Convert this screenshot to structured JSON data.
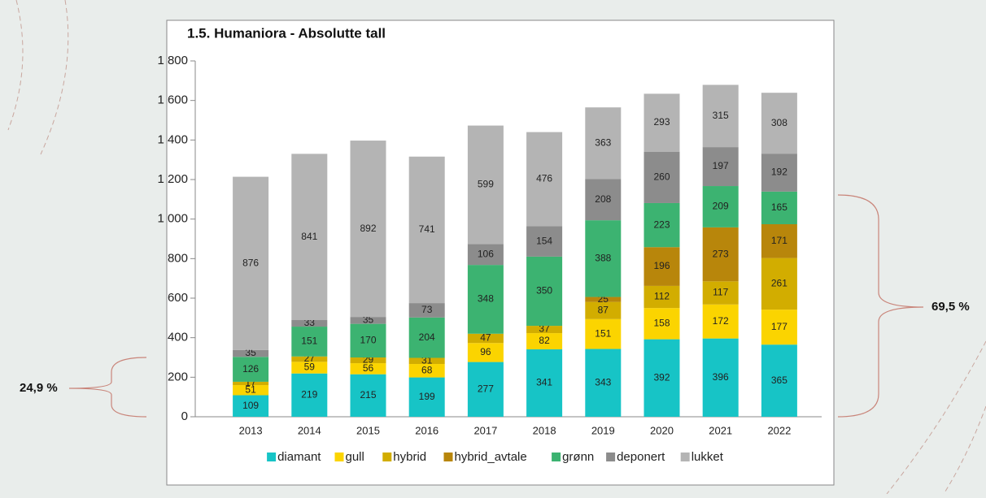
{
  "chart_data": {
    "type": "stacked_bar",
    "title": "1.5. Humaniora - Absolutte tall",
    "categories": [
      "2013",
      "2014",
      "2015",
      "2016",
      "2017",
      "2018",
      "2019",
      "2020",
      "2021",
      "2022"
    ],
    "series": [
      {
        "name": "diamant",
        "color": "#17c4c6",
        "values": [
          109,
          219,
          215,
          199,
          277,
          341,
          343,
          392,
          396,
          365
        ]
      },
      {
        "name": "gull",
        "color": "#fbd400",
        "values": [
          51,
          59,
          56,
          68,
          96,
          82,
          151,
          158,
          172,
          177
        ]
      },
      {
        "name": "hybrid",
        "color": "#d2ad00",
        "values": [
          17,
          27,
          29,
          31,
          47,
          37,
          87,
          112,
          117,
          261
        ]
      },
      {
        "name": "hybrid_avtale",
        "color": "#b8860b",
        "values": [
          null,
          null,
          null,
          null,
          null,
          null,
          25,
          196,
          273,
          171
        ]
      },
      {
        "name": "grønn",
        "color": "#3cb371",
        "values": [
          126,
          151,
          170,
          204,
          348,
          350,
          388,
          223,
          209,
          165
        ]
      },
      {
        "name": "deponert",
        "color": "#8c8c8c",
        "values": [
          35,
          33,
          35,
          73,
          106,
          154,
          208,
          260,
          197,
          192
        ]
      },
      {
        "name": "lukket",
        "color": "#b4b4b4",
        "values": [
          876,
          841,
          892,
          741,
          599,
          476,
          363,
          293,
          315,
          308
        ]
      }
    ],
    "ylim": [
      0,
      1800
    ],
    "yticks": [
      0,
      200,
      400,
      600,
      800,
      {
        "value": 1000,
        "label": "1 000"
      },
      {
        "value": 1200,
        "label": "1 200"
      },
      {
        "value": 1400,
        "label": "1 400"
      },
      {
        "value": 1600,
        "label": "1 600"
      },
      {
        "value": 1800,
        "label": "1 800"
      }
    ],
    "annotations": [
      "24,9 %",
      "69,5 %"
    ],
    "legend": "bottom"
  }
}
